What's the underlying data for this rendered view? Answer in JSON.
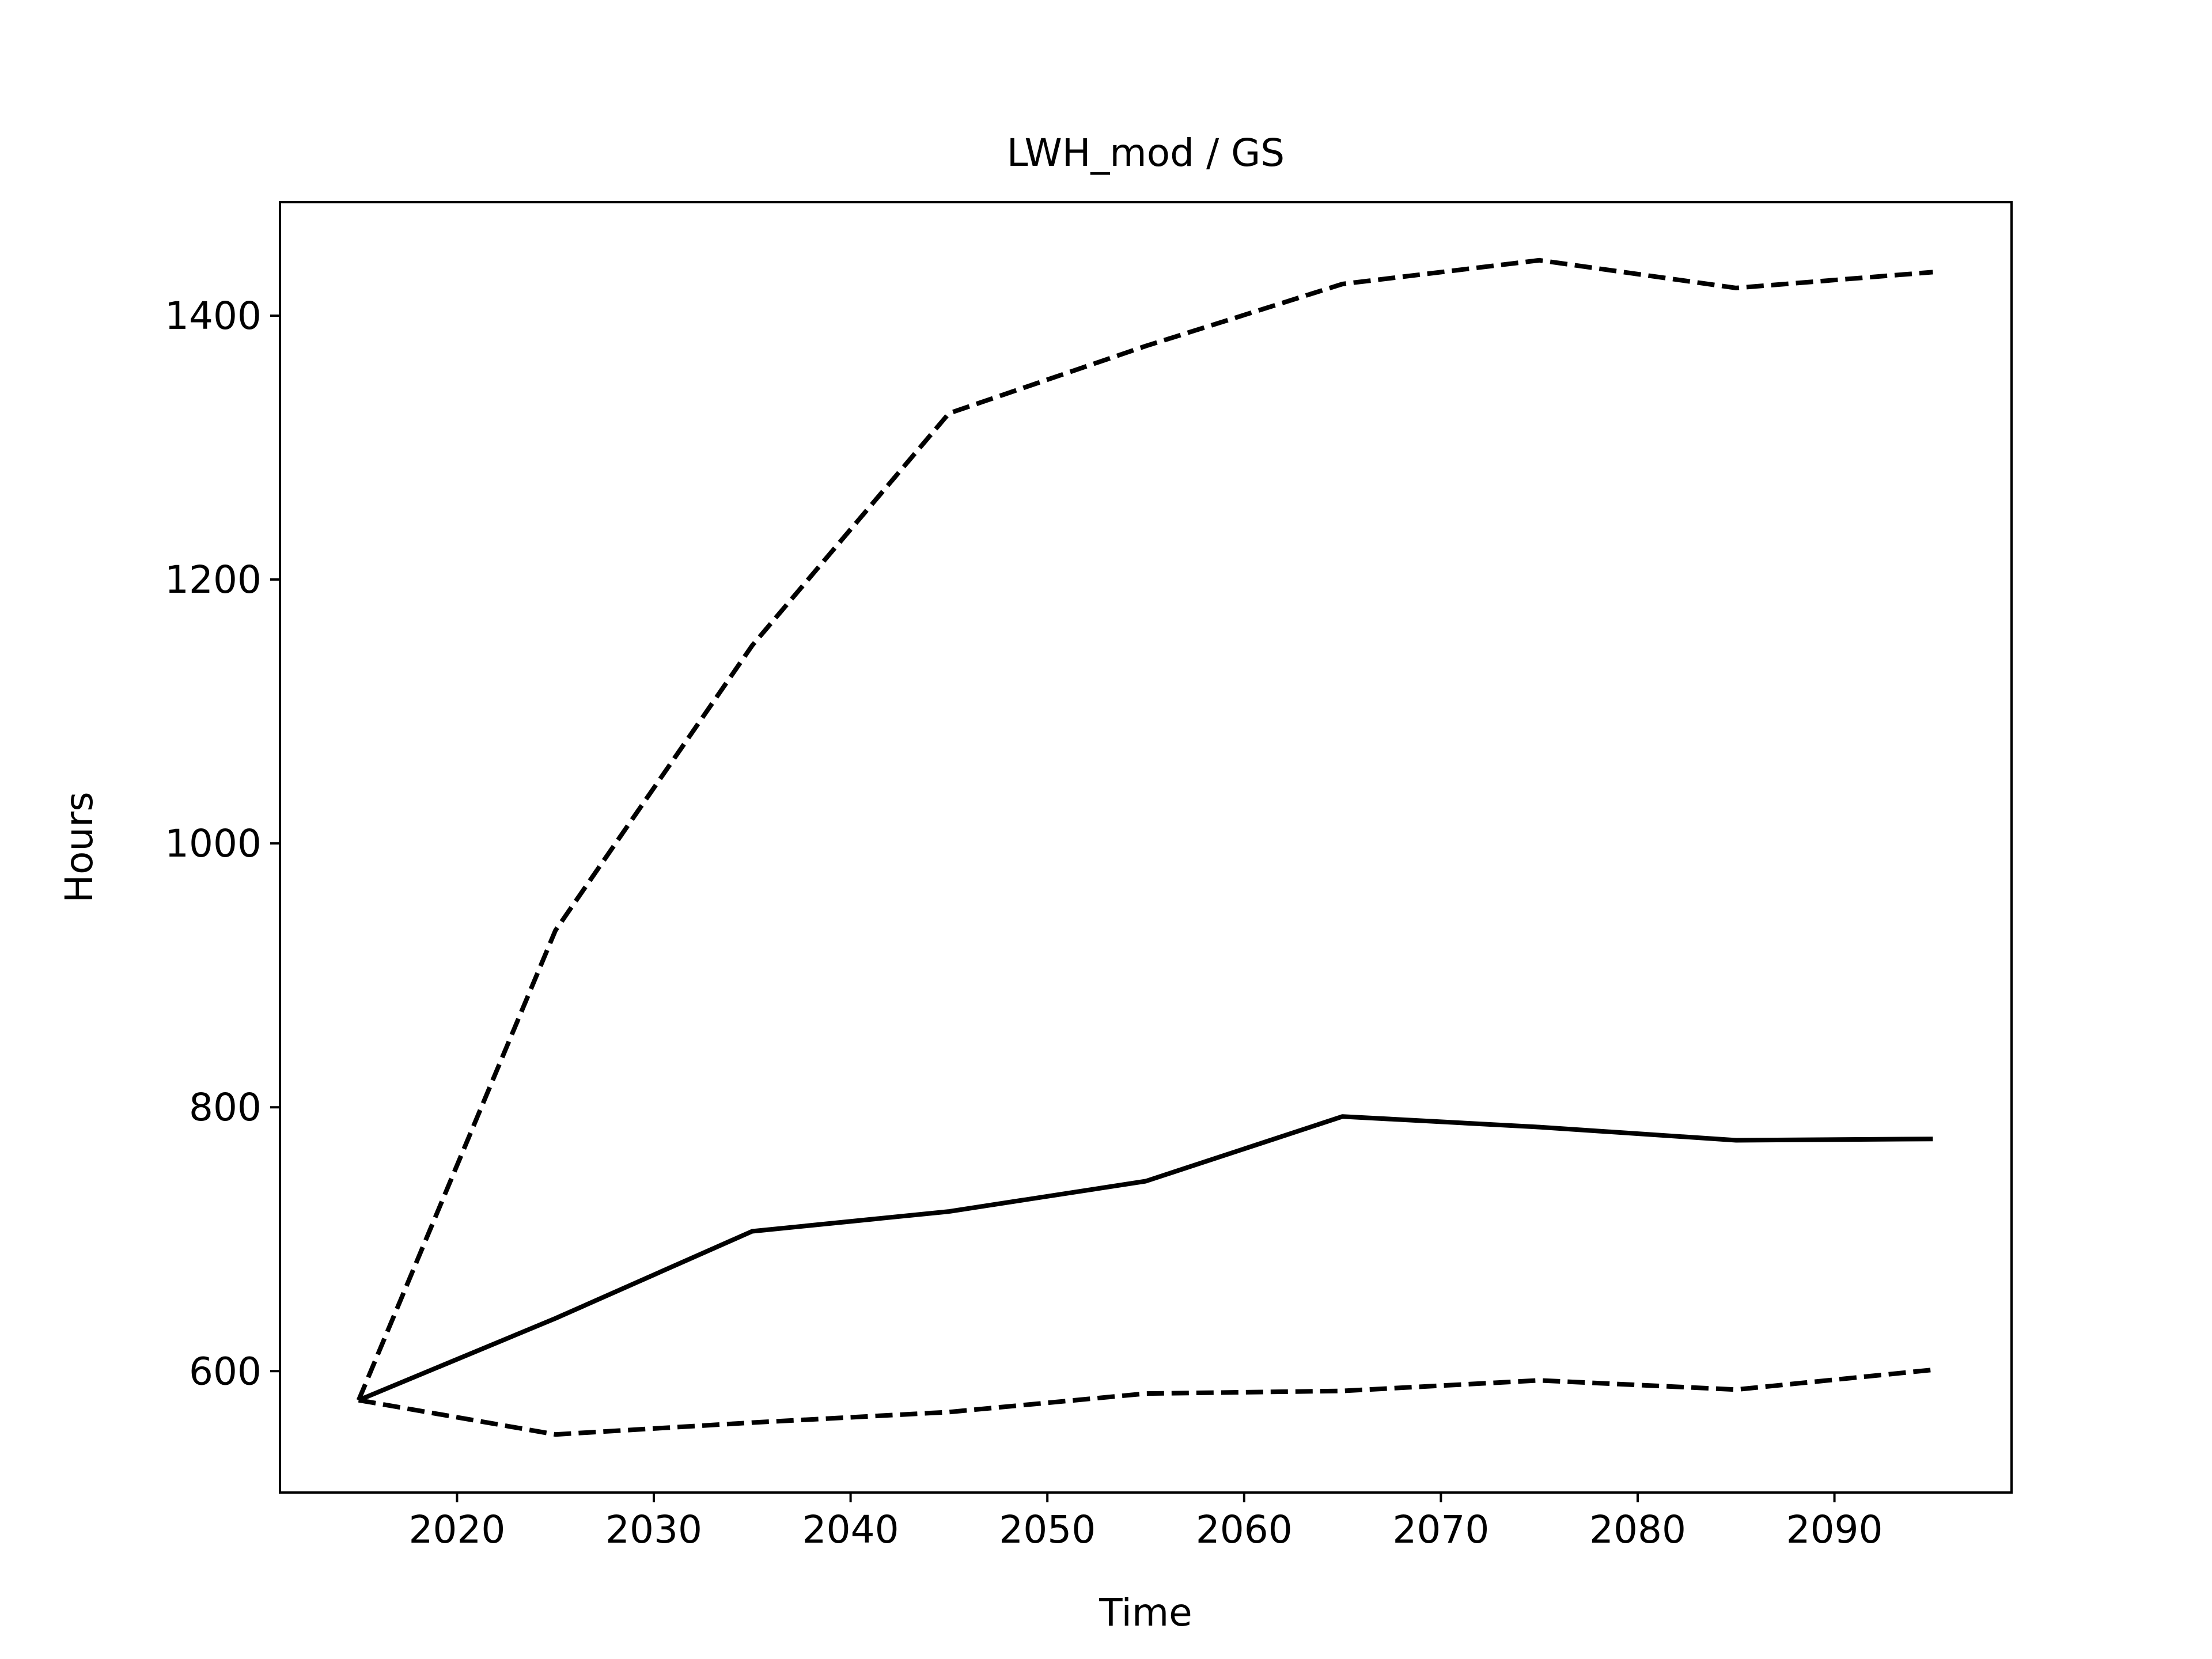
{
  "chart_data": {
    "type": "line",
    "title": "LWH_mod / GS",
    "xlabel": "Time",
    "ylabel": "Hours",
    "xlim": [
      2011,
      2099
    ],
    "ylim": [
      508,
      1486
    ],
    "x_ticks": [
      2020,
      2030,
      2040,
      2050,
      2060,
      2070,
      2080,
      2090
    ],
    "y_ticks": [
      600,
      800,
      1000,
      1200,
      1400
    ],
    "x": [
      2015,
      2025,
      2035,
      2045,
      2055,
      2065,
      2075,
      2085,
      2095
    ],
    "series": [
      {
        "style": "dashed",
        "values": [
          578,
          934,
          1150,
          1326,
          1377,
          1424,
          1442,
          1421,
          1433
        ]
      },
      {
        "style": "solid",
        "values": [
          578,
          640,
          706,
          721,
          744,
          793,
          785,
          775,
          776
        ]
      },
      {
        "style": "dashed",
        "values": [
          578,
          552,
          561,
          569,
          583,
          585,
          593,
          586,
          601
        ]
      }
    ],
    "grid": false,
    "legend": "none",
    "line_color": "#000000"
  }
}
